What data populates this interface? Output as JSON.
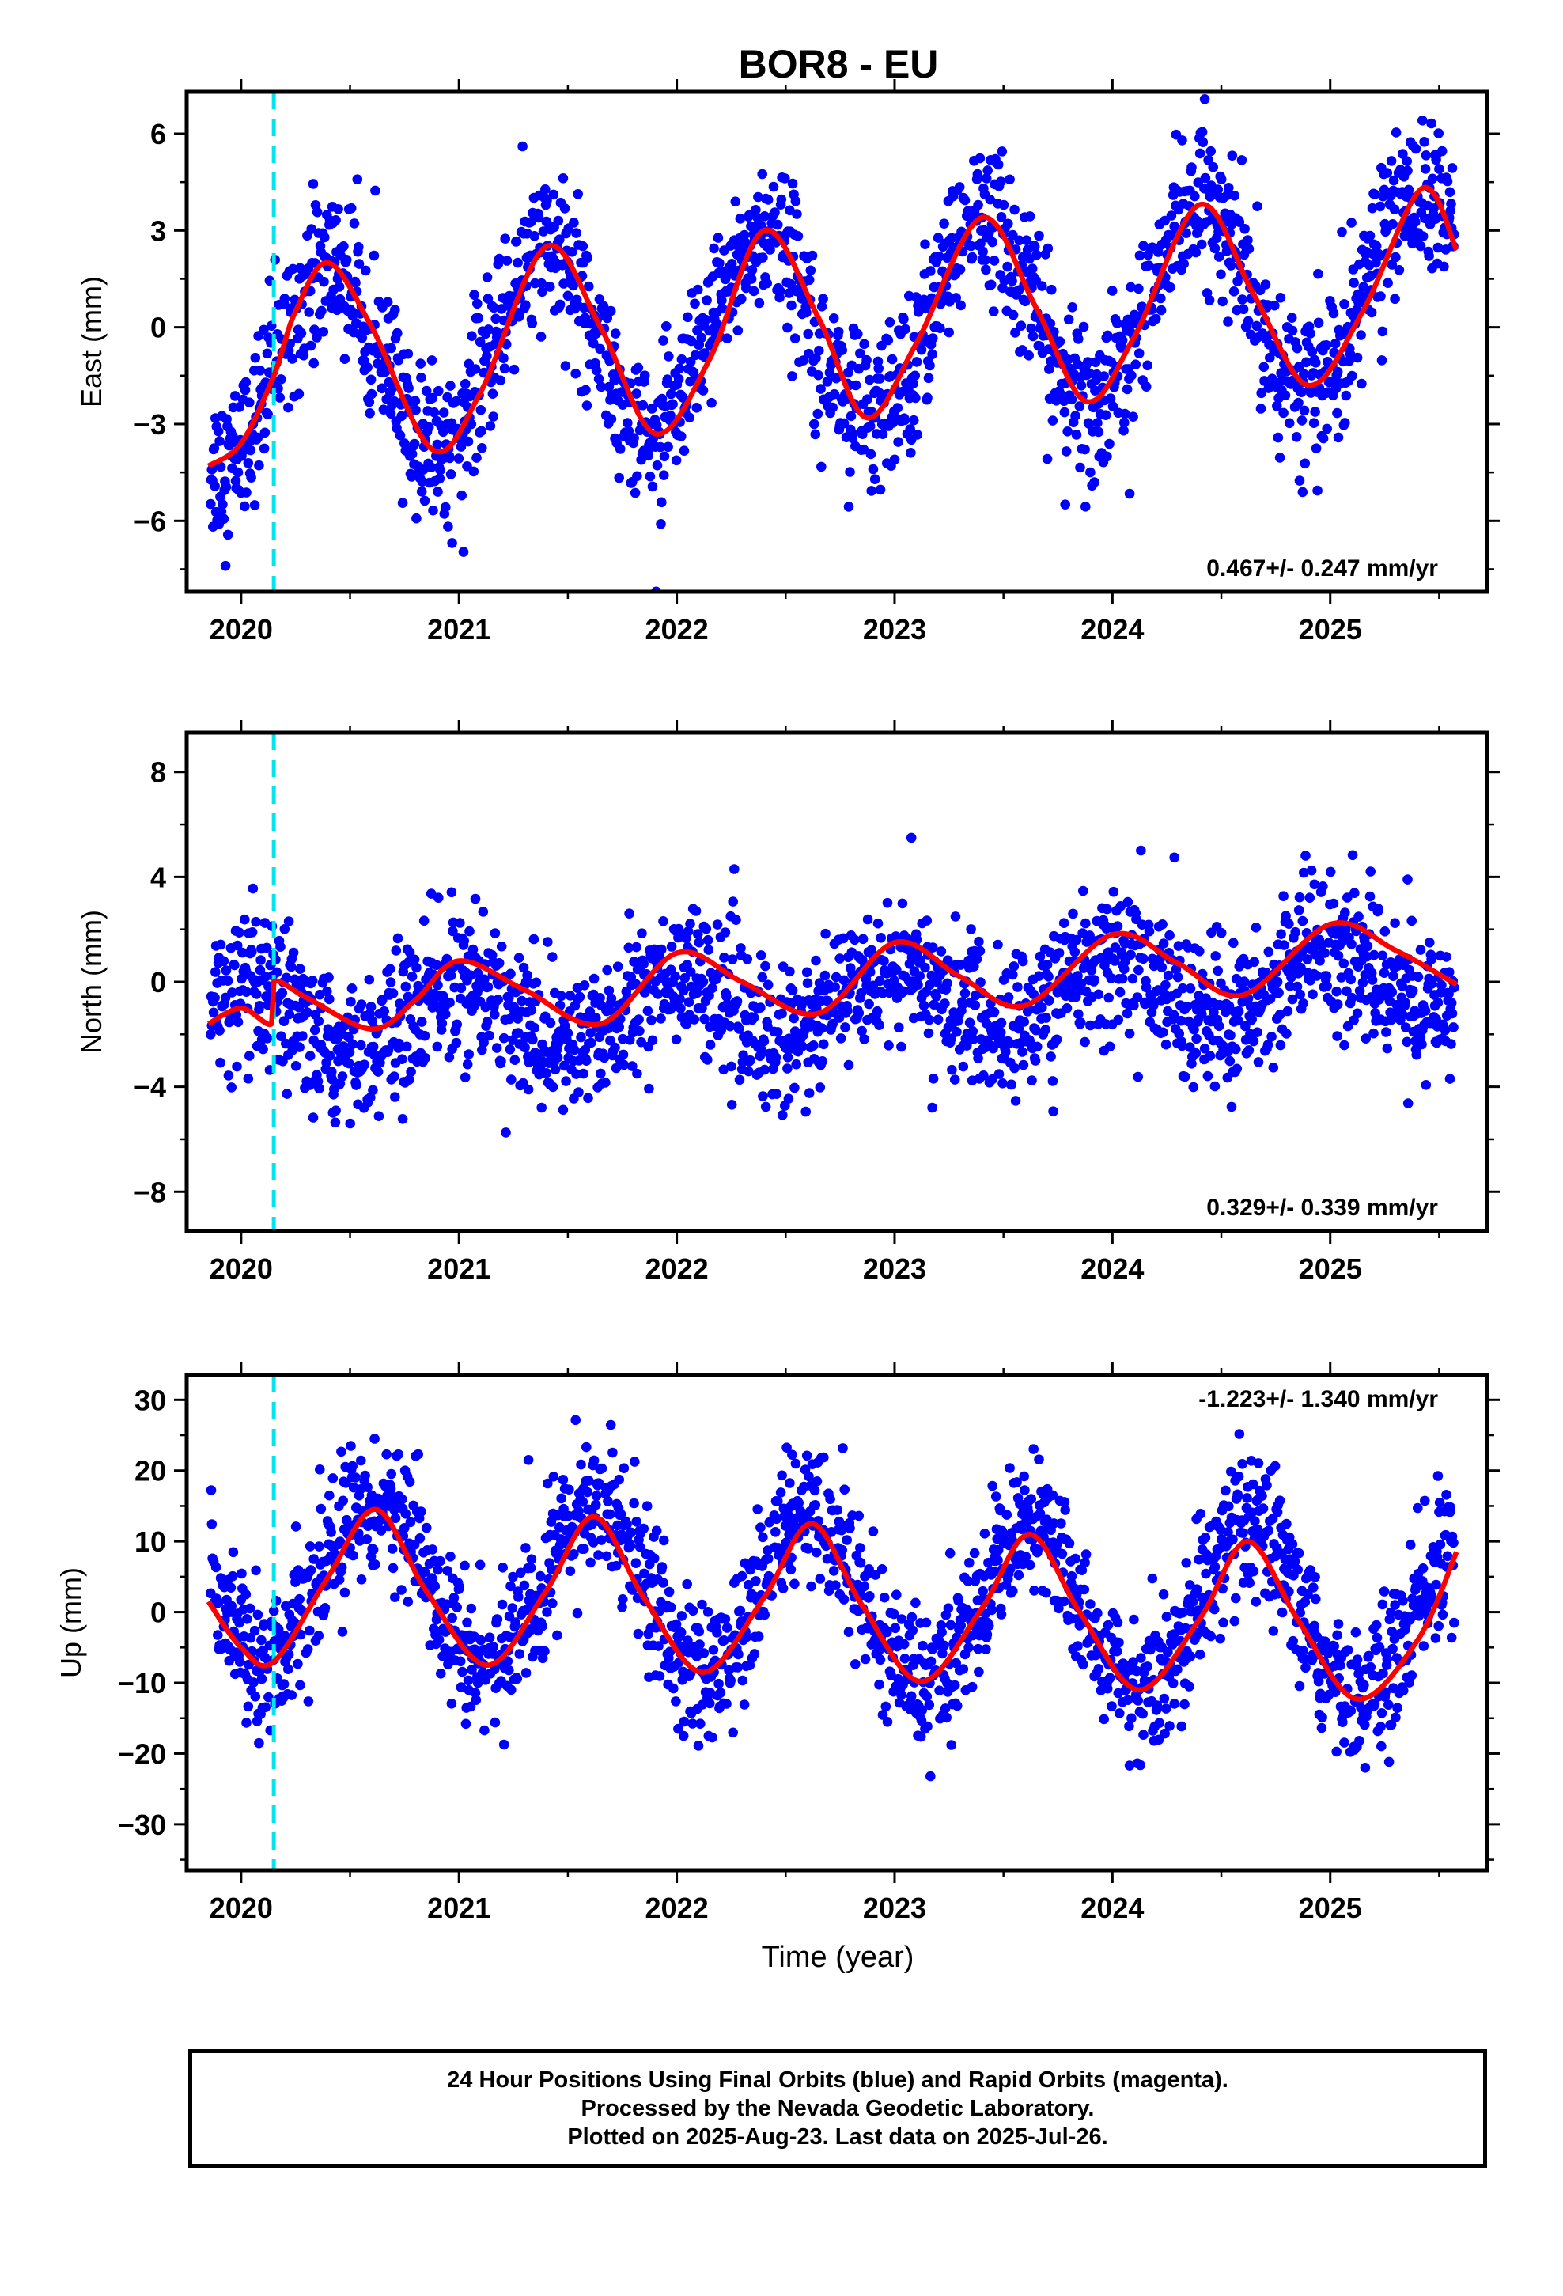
{
  "chart_data": {
    "type": "scatter",
    "title": "BOR8 - EU",
    "xlabel": "Time (year)",
    "xlim": [
      2019.75,
      2025.72
    ],
    "x_ticks": [
      "2020",
      "2021",
      "2022",
      "2023",
      "2024",
      "2025"
    ],
    "event_line_x": 2020.15,
    "colors": {
      "points": "#0000ff",
      "fit": "#ff0000",
      "event": "#00e5ee",
      "frame": "#000000"
    },
    "panels": [
      {
        "name": "east",
        "ylabel": "East (mm)",
        "ylim": [
          -8.2,
          7.3
        ],
        "yticks": [
          -6,
          -3,
          0,
          3,
          6
        ],
        "rate_label": "0.467+/- 0.247 mm/yr",
        "rate_position": "bottom-right",
        "trend": 0.467,
        "offset": 0,
        "seasonal_amp": 3.0,
        "seasonal_peak": 0.4,
        "scatter": 1.2,
        "fit": {
          "x": [
            2019.85,
            2020.0,
            2020.15,
            2020.25,
            2020.4,
            2020.6,
            2020.88,
            2021.1,
            2021.4,
            2021.65,
            2021.9,
            2022.15,
            2022.4,
            2022.65,
            2022.87,
            2023.1,
            2023.4,
            2023.65,
            2023.88,
            2024.1,
            2024.4,
            2024.65,
            2024.9,
            2025.15,
            2025.42,
            2025.58
          ],
          "y": [
            -4.3,
            -3.6,
            -1.5,
            0.5,
            2.0,
            0.0,
            -3.8,
            -2.0,
            2.5,
            0.0,
            -3.3,
            -1.0,
            3.0,
            0.3,
            -2.8,
            -0.5,
            3.4,
            0.6,
            -2.3,
            -0.3,
            3.8,
            1.0,
            -1.8,
            0.5,
            4.3,
            2.4
          ]
        }
      },
      {
        "name": "north",
        "ylabel": "North (mm)",
        "ylim": [
          -9.5,
          9.5
        ],
        "yticks": [
          -8,
          -4,
          0,
          4,
          8
        ],
        "rate_label": "0.329+/- 0.339 mm/yr",
        "rate_position": "bottom-right",
        "trend": 0.329,
        "offset": -0.8,
        "seasonal_amp": 1.3,
        "seasonal_peak": 0.0,
        "scatter": 1.4,
        "fit": {
          "x": [
            2019.85,
            2020.0,
            2020.14,
            2020.15,
            2020.3,
            2020.6,
            2020.8,
            2021.0,
            2021.3,
            2021.65,
            2022.0,
            2022.3,
            2022.65,
            2023.0,
            2023.3,
            2023.6,
            2024.0,
            2024.3,
            2024.6,
            2025.0,
            2025.3,
            2025.58
          ],
          "y": [
            -1.6,
            -1.0,
            -1.6,
            0.0,
            -0.6,
            -1.8,
            -0.7,
            0.8,
            -0.3,
            -1.6,
            1.1,
            0.0,
            -1.2,
            1.5,
            0.2,
            -0.9,
            1.8,
            0.7,
            -0.5,
            2.2,
            1.2,
            -0.1
          ]
        }
      },
      {
        "name": "up",
        "ylabel": "Up (mm)",
        "ylim": [
          -36.5,
          33.5
        ],
        "yticks": [
          -30,
          -20,
          -10,
          0,
          10,
          20,
          30
        ],
        "rate_label": "-1.223+/- 1.340 mm/yr",
        "rate_position": "top-right",
        "trend": -1.223,
        "offset": 2.0,
        "seasonal_amp": 11.5,
        "seasonal_peak": 0.62,
        "scatter": 5.0,
        "fit": {
          "x": [
            2019.85,
            2020.0,
            2020.15,
            2020.4,
            2020.62,
            2020.85,
            2021.13,
            2021.4,
            2021.62,
            2021.85,
            2022.12,
            2022.4,
            2022.62,
            2022.85,
            2023.12,
            2023.4,
            2023.62,
            2023.85,
            2024.12,
            2024.4,
            2024.62,
            2024.85,
            2025.12,
            2025.4,
            2025.58
          ],
          "y": [
            1.5,
            -5.0,
            -7.0,
            5.0,
            14.5,
            3.0,
            -7.5,
            3.0,
            13.5,
            2.0,
            -8.5,
            2.0,
            12.5,
            1.0,
            -9.8,
            0.5,
            11.0,
            0.0,
            -11.0,
            -1.0,
            10.0,
            -1.0,
            -12.3,
            -4.0,
            8.5
          ]
        }
      }
    ]
  },
  "footer": {
    "line1": "24 Hour Positions Using Final Orbits (blue) and Rapid Orbits (magenta).",
    "line2": "Processed by the Nevada Geodetic Laboratory.",
    "line3": "Plotted on 2025-Aug-23. Last data on 2025-Jul-26."
  }
}
